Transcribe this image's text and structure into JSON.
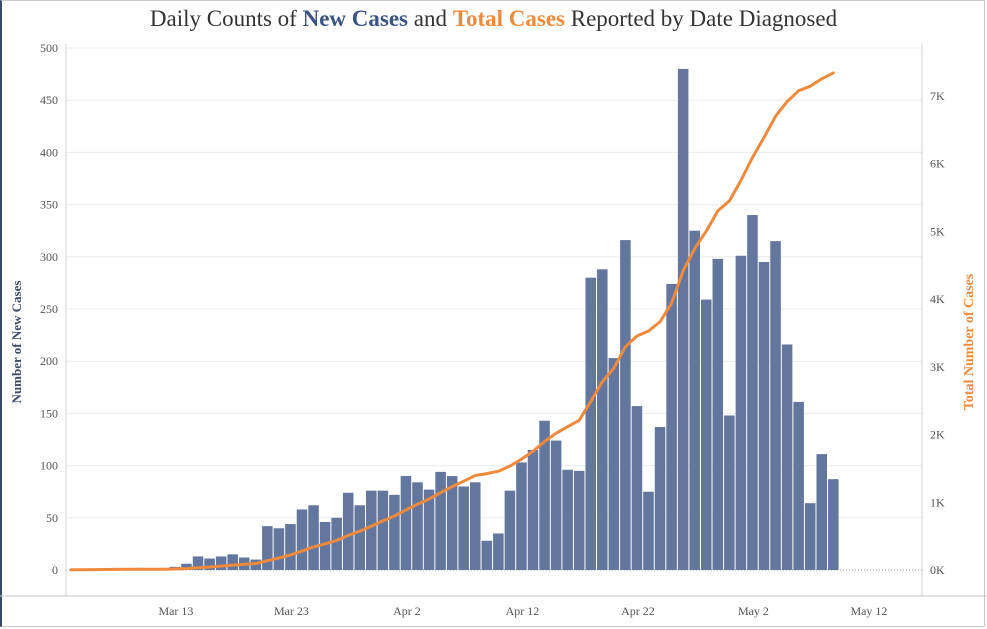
{
  "title": {
    "prefix": "Daily Counts of ",
    "new_cases": "New Cases",
    "middle": " and ",
    "total_cases": "Total Cases",
    "suffix": " Reported by Date Diagnosed"
  },
  "colors": {
    "new_cases": "#3b5483",
    "total_cases": "#ef8a3c",
    "bars": "#63769e",
    "line": "#ef8a3c",
    "grid": "#ececec",
    "text": "#333333"
  },
  "chart_data": {
    "type": "bar+line",
    "title": "Daily Counts of New Cases and Total Cases Reported by Date Diagnosed",
    "xlabel": "",
    "ylabel_left": "Number of New Cases",
    "ylabel_right": "Total Number of Cases",
    "ylim_left": [
      0,
      500
    ],
    "ylim_right": [
      0,
      7700
    ],
    "x_start": "Mar 4",
    "x_ticks": [
      {
        "label": "Mar 13",
        "index": 9
      },
      {
        "label": "Mar 23",
        "index": 19
      },
      {
        "label": "Apr 2",
        "index": 29
      },
      {
        "label": "Apr 12",
        "index": 39
      },
      {
        "label": "Apr 22",
        "index": 49
      },
      {
        "label": "May 2",
        "index": 59
      },
      {
        "label": "May 12",
        "index": 69
      }
    ],
    "y_left_ticks": [
      0,
      50,
      100,
      150,
      200,
      250,
      300,
      350,
      400,
      450,
      500
    ],
    "y_right_ticks": [
      {
        "label": "0K",
        "value": 0
      },
      {
        "label": "1K",
        "value": 1000
      },
      {
        "label": "2K",
        "value": 2000
      },
      {
        "label": "3K",
        "value": 3000
      },
      {
        "label": "4K",
        "value": 4000
      },
      {
        "label": "5K",
        "value": 5000
      },
      {
        "label": "6K",
        "value": 6000
      },
      {
        "label": "7K",
        "value": 7000
      }
    ],
    "series": [
      {
        "name": "New Cases",
        "type": "bar",
        "values": [
          0,
          0,
          0,
          0,
          2,
          1,
          2,
          0,
          0,
          3,
          6,
          13,
          11,
          13,
          15,
          12,
          10,
          42,
          40,
          44,
          58,
          62,
          46,
          50,
          74,
          62,
          76,
          76,
          72,
          90,
          84,
          77,
          94,
          90,
          80,
          84,
          28,
          35,
          76,
          103,
          115,
          143,
          124,
          96,
          95,
          280,
          288,
          203,
          316,
          157,
          75,
          137,
          274,
          480,
          325,
          259,
          298,
          148,
          301,
          340,
          295,
          315,
          216,
          161,
          64,
          111,
          87
        ]
      },
      {
        "name": "Total Cases",
        "type": "line",
        "values": [
          5,
          5,
          6,
          7,
          9,
          10,
          12,
          12,
          12,
          15,
          21,
          34,
          45,
          58,
          73,
          85,
          95,
          137,
          177,
          221,
          279,
          341,
          387,
          437,
          511,
          573,
          649,
          725,
          797,
          887,
          971,
          1048,
          1142,
          1232,
          1312,
          1396,
          1424,
          1459,
          1535,
          1638,
          1753,
          1896,
          2020,
          2116,
          2211,
          2491,
          2779,
          2982,
          3298,
          3455,
          3530,
          3667,
          3941,
          4421,
          4746,
          5005,
          5303,
          5451,
          5752,
          6092,
          6387,
          6702,
          6918,
          7079,
          7143,
          7254,
          7341
        ]
      }
    ]
  }
}
